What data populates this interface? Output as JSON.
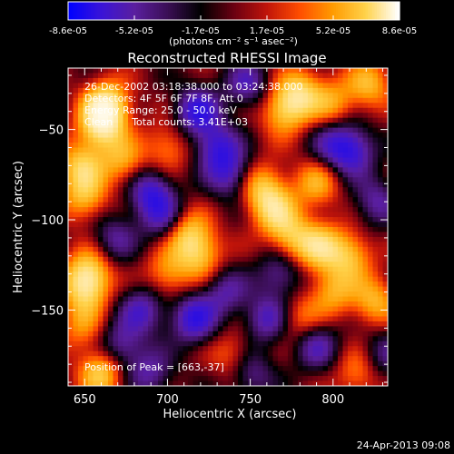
{
  "chart_data": {
    "type": "heatmap",
    "title": "Reconstructed RHESSI Image",
    "colorbar": {
      "ticks": [
        "-8.6e-05",
        "-5.2e-05",
        "-1.7e-05",
        "1.7e-05",
        "5.2e-05",
        "8.6e-05"
      ],
      "range": [
        -8.6e-05,
        8.6e-05
      ],
      "unit_label": "(photons cm⁻² s⁻¹ asec⁻²)",
      "colormap": [
        "#0000ff",
        "#3b14d6",
        "#5a1e9e",
        "#3a0e54",
        "#000000",
        "#6a0012",
        "#c0140a",
        "#ff4d00",
        "#ff9a00",
        "#ffd24a",
        "#ffffff"
      ]
    },
    "info_lines": [
      "26-Dec-2002 03:18:38.000 to 03:24:38.000",
      "Detectors: 4F 5F 6F 7F 8F, Att 0",
      "Energy Range: 25.0 - 50.0 keV",
      "Clean      Total counts: 3.41E+03"
    ],
    "peak_label": "Position of Peak = [663,-37]",
    "xlabel": "Heliocentric X (arcsec)",
    "ylabel": "Heliocentric Y (arcsec)",
    "xlim": [
      640,
      833
    ],
    "ylim": [
      -192,
      -16
    ],
    "x_ticks": [
      650,
      700,
      750,
      800
    ],
    "y_ticks": [
      -50,
      -100,
      -150
    ],
    "grid": false,
    "features": [
      {
        "x": 663,
        "y": -37,
        "v": 1.0
      },
      {
        "x": 660,
        "y": -48,
        "v": 0.8
      },
      {
        "x": 648,
        "y": -70,
        "v": 0.7
      },
      {
        "x": 650,
        "y": -88,
        "v": 0.6
      },
      {
        "x": 673,
        "y": -68,
        "v": 0.55
      },
      {
        "x": 700,
        "y": -60,
        "v": 0.45
      },
      {
        "x": 712,
        "y": -108,
        "v": 0.7
      },
      {
        "x": 720,
        "y": -120,
        "v": 0.6
      },
      {
        "x": 700,
        "y": -130,
        "v": 0.5
      },
      {
        "x": 650,
        "y": -140,
        "v": 0.55
      },
      {
        "x": 652,
        "y": -130,
        "v": 0.8
      },
      {
        "x": 660,
        "y": -185,
        "v": 0.75
      },
      {
        "x": 648,
        "y": -160,
        "v": 0.4
      },
      {
        "x": 780,
        "y": -30,
        "v": 0.75
      },
      {
        "x": 770,
        "y": -40,
        "v": 0.65
      },
      {
        "x": 800,
        "y": -35,
        "v": 0.5
      },
      {
        "x": 822,
        "y": -25,
        "v": 0.6
      },
      {
        "x": 757,
        "y": -82,
        "v": 0.65
      },
      {
        "x": 765,
        "y": -95,
        "v": 0.7
      },
      {
        "x": 790,
        "y": -80,
        "v": 0.55
      },
      {
        "x": 792,
        "y": -115,
        "v": 0.75
      },
      {
        "x": 775,
        "y": -110,
        "v": 0.6
      },
      {
        "x": 810,
        "y": -120,
        "v": 0.65
      },
      {
        "x": 800,
        "y": -140,
        "v": 0.55
      },
      {
        "x": 825,
        "y": -145,
        "v": 0.6
      },
      {
        "x": 780,
        "y": -155,
        "v": 0.4
      },
      {
        "x": 740,
        "y": -175,
        "v": 0.4
      },
      {
        "x": 815,
        "y": -185,
        "v": 0.45
      },
      {
        "x": 718,
        "y": -40,
        "v": -0.8
      },
      {
        "x": 730,
        "y": -60,
        "v": -0.7
      },
      {
        "x": 738,
        "y": -75,
        "v": -0.6
      },
      {
        "x": 690,
        "y": -85,
        "v": -0.75
      },
      {
        "x": 698,
        "y": -100,
        "v": -0.5
      },
      {
        "x": 685,
        "y": -150,
        "v": -0.6
      },
      {
        "x": 716,
        "y": -155,
        "v": -0.8
      },
      {
        "x": 735,
        "y": -140,
        "v": -0.5
      },
      {
        "x": 672,
        "y": -170,
        "v": -0.55
      },
      {
        "x": 760,
        "y": -155,
        "v": -0.6
      },
      {
        "x": 812,
        "y": -62,
        "v": -0.7
      },
      {
        "x": 800,
        "y": -58,
        "v": -0.5
      },
      {
        "x": 826,
        "y": -90,
        "v": -0.5
      },
      {
        "x": 768,
        "y": -130,
        "v": -0.5
      },
      {
        "x": 790,
        "y": -170,
        "v": -0.55
      },
      {
        "x": 750,
        "y": -185,
        "v": -0.5
      },
      {
        "x": 690,
        "y": -185,
        "v": -0.5
      },
      {
        "x": 830,
        "y": -175,
        "v": -0.4
      },
      {
        "x": 748,
        "y": -25,
        "v": -0.55
      },
      {
        "x": 668,
        "y": -110,
        "v": -0.45
      }
    ]
  },
  "footer": {
    "timestamp": "24-Apr-2013 09:08"
  }
}
